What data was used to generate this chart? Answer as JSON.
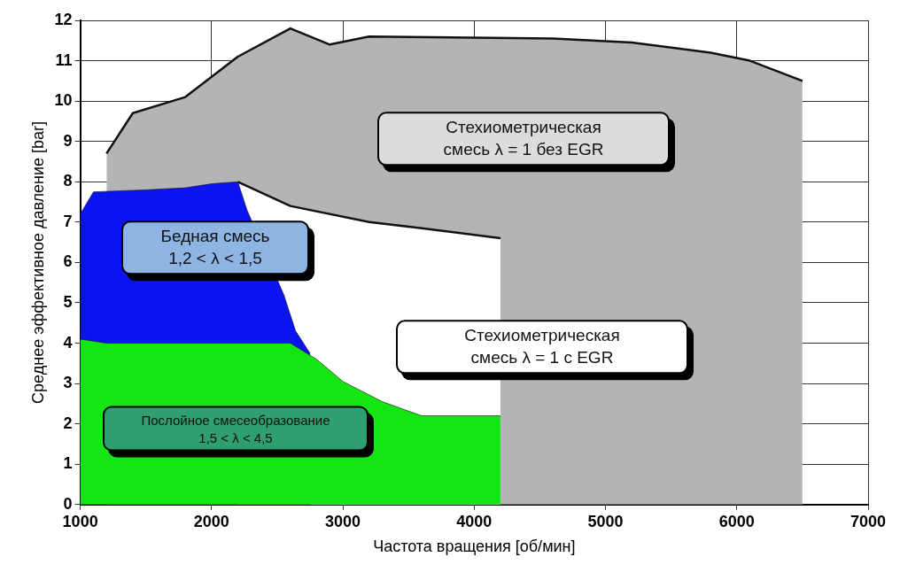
{
  "chart_data": {
    "type": "area",
    "xlabel": "Частота вращения [об/мин]",
    "ylabel": "Среднее эффективное давление [bar]",
    "xlim": [
      1000,
      7000
    ],
    "xticks": [
      1000,
      2000,
      3000,
      4000,
      5000,
      6000,
      7000
    ],
    "ylim": [
      0,
      12
    ],
    "yticks": [
      0,
      1,
      2,
      3,
      4,
      5,
      6,
      7,
      8,
      9,
      10,
      11,
      12
    ],
    "grid": true,
    "legend": false,
    "series": [
      {
        "color": "#b4b4b4",
        "x": [
          1200,
          1400,
          1800,
          2000,
          2200,
          2600,
          2900,
          3200,
          4600,
          5200,
          5800,
          6100,
          6500
        ],
        "values": [
          8.7,
          9.7,
          10.1,
          10.6,
          11.1,
          11.8,
          11.4,
          11.6,
          11.55,
          11.45,
          11.2,
          11.0,
          10.5
        ]
      },
      {
        "color": "#ffffff",
        "x": [
          2200,
          2600,
          3200,
          3600,
          4200
        ],
        "values": [
          8.0,
          7.4,
          7.0,
          6.85,
          6.6
        ]
      },
      {
        "color": "#0a14f0",
        "x": [
          1000,
          1100,
          1500,
          1800,
          2000,
          2200,
          2270,
          2550,
          2640,
          2750
        ],
        "values": [
          7.2,
          7.75,
          7.8,
          7.85,
          7.95,
          8.0,
          7.3,
          5.2,
          4.3,
          3.75
        ]
      },
      {
        "color": "#14e614",
        "x": [
          1000,
          1200,
          2600,
          2800,
          3000,
          3300,
          3600,
          4200
        ],
        "values": [
          4.1,
          4.0,
          4.0,
          3.6,
          3.05,
          2.55,
          2.2,
          2.2
        ]
      }
    ],
    "annotations": [
      "Стехиометрическая\nсмесь λ = 1 без EGR",
      "Бедная смесь\n1,2 < λ < 1,5",
      "Стехиометрическая\nсмесь λ = 1 с EGR",
      "Послойное смесеобразование\n1,5 < λ < 4,5"
    ]
  }
}
